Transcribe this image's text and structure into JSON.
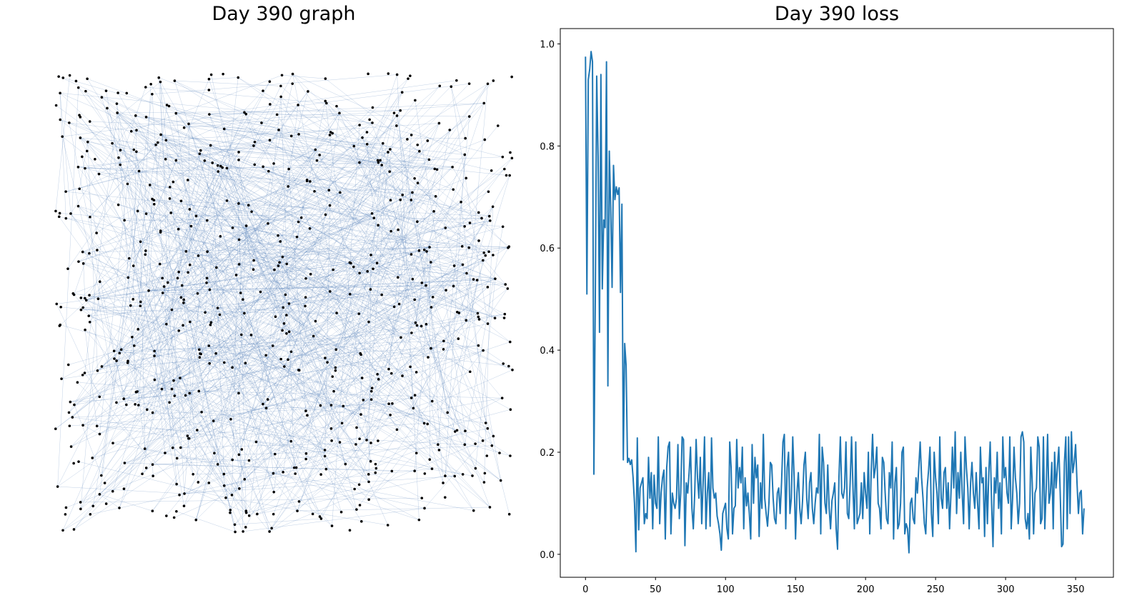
{
  "graph_panel": {
    "title": "Day 390 graph"
  },
  "loss_panel": {
    "title": "Day 390 loss"
  },
  "chart_data": [
    {
      "type": "scatter",
      "title": "Day 390 graph",
      "description_kind": "network graph",
      "node_count": 700,
      "edge_count": 900,
      "node_color": "#000000",
      "edge_color": "#4a78b5",
      "axes_visible": false
    },
    {
      "type": "line",
      "title": "Day 390 loss",
      "xlabel": "",
      "ylabel": "",
      "xlim": [
        -18,
        377
      ],
      "ylim": [
        -0.045,
        1.03
      ],
      "xticks": [
        0,
        50,
        100,
        150,
        200,
        250,
        300,
        350
      ],
      "yticks": [
        0.0,
        0.2,
        0.4,
        0.6,
        0.8,
        1.0
      ],
      "ytick_labels": [
        "0.0",
        "0.2",
        "0.4",
        "0.6",
        "0.8",
        "1.0"
      ],
      "line_color": "#1f77b4",
      "series": [
        {
          "values": [
            0.975,
            0.51,
            0.93,
            0.95,
            0.985,
            0.965,
            0.157,
            0.5,
            0.937,
            0.78,
            0.435,
            0.94,
            0.52,
            0.655,
            0.64,
            0.965,
            0.33,
            0.79,
            0.68,
            0.523,
            0.762,
            0.695,
            0.72,
            0.705,
            0.718,
            0.513,
            0.686,
            0.185,
            0.413,
            0.37,
            0.18,
            0.188,
            0.176,
            0.185,
            0.15,
            0.1,
            0.005,
            0.228,
            0.048,
            0.13,
            0.14,
            0.15,
            0.06,
            0.08,
            0.07,
            0.19,
            0.11,
            0.16,
            0.05,
            0.155,
            0.1,
            0.09,
            0.23,
            0.06,
            0.12,
            0.15,
            0.165,
            0.03,
            0.17,
            0.21,
            0.22,
            0.04,
            0.12,
            0.1,
            0.09,
            0.11,
            0.215,
            0.07,
            0.12,
            0.23,
            0.225,
            0.017,
            0.14,
            0.12,
            0.16,
            0.21,
            0.09,
            0.05,
            0.12,
            0.225,
            0.15,
            0.11,
            0.19,
            0.06,
            0.14,
            0.23,
            0.05,
            0.12,
            0.16,
            0.055,
            0.228,
            0.13,
            0.11,
            0.12,
            0.075,
            0.06,
            0.04,
            0.008,
            0.08,
            0.09,
            0.1,
            0.05,
            0.03,
            0.22,
            0.17,
            0.04,
            0.09,
            0.095,
            0.225,
            0.13,
            0.17,
            0.14,
            0.21,
            0.05,
            0.15,
            0.095,
            0.12,
            0.08,
            0.03,
            0.215,
            0.1,
            0.19,
            0.15,
            0.175,
            0.035,
            0.14,
            0.09,
            0.235,
            0.11,
            0.08,
            0.055,
            0.1,
            0.18,
            0.175,
            0.11,
            0.07,
            0.06,
            0.12,
            0.13,
            0.08,
            0.14,
            0.22,
            0.235,
            0.05,
            0.17,
            0.2,
            0.08,
            0.11,
            0.23,
            0.15,
            0.03,
            0.12,
            0.16,
            0.09,
            0.06,
            0.105,
            0.175,
            0.2,
            0.11,
            0.07,
            0.14,
            0.16,
            0.09,
            0.06,
            0.1,
            0.13,
            0.12,
            0.235,
            0.04,
            0.21,
            0.18,
            0.1,
            0.08,
            0.175,
            0.09,
            0.05,
            0.105,
            0.12,
            0.14,
            0.05,
            0.01,
            0.15,
            0.23,
            0.12,
            0.11,
            0.13,
            0.22,
            0.08,
            0.07,
            0.14,
            0.23,
            0.13,
            0.05,
            0.22,
            0.06,
            0.07,
            0.08,
            0.14,
            0.07,
            0.16,
            0.12,
            0.09,
            0.2,
            0.04,
            0.16,
            0.235,
            0.15,
            0.17,
            0.21,
            0.1,
            0.09,
            0.05,
            0.19,
            0.18,
            0.12,
            0.07,
            0.06,
            0.16,
            0.13,
            0.22,
            0.03,
            0.14,
            0.17,
            0.05,
            0.06,
            0.1,
            0.2,
            0.21,
            0.04,
            0.06,
            0.05,
            0.003,
            0.1,
            0.11,
            0.07,
            0.06,
            0.15,
            0.12,
            0.17,
            0.22,
            0.15,
            0.11,
            0.06,
            0.04,
            0.13,
            0.165,
            0.21,
            0.08,
            0.035,
            0.2,
            0.15,
            0.12,
            0.06,
            0.23,
            0.11,
            0.09,
            0.16,
            0.17,
            0.09,
            0.14,
            0.05,
            0.12,
            0.21,
            0.13,
            0.24,
            0.08,
            0.16,
            0.11,
            0.2,
            0.12,
            0.06,
            0.23,
            0.17,
            0.13,
            0.05,
            0.14,
            0.18,
            0.12,
            0.09,
            0.16,
            0.1,
            0.05,
            0.21,
            0.14,
            0.15,
            0.035,
            0.17,
            0.06,
            0.16,
            0.22,
            0.1,
            0.015,
            0.15,
            0.12,
            0.2,
            0.09,
            0.14,
            0.04,
            0.23,
            0.15,
            0.17,
            0.12,
            0.1,
            0.23,
            0.05,
            0.11,
            0.21,
            0.15,
            0.12,
            0.06,
            0.1,
            0.23,
            0.24,
            0.22,
            0.07,
            0.05,
            0.08,
            0.03,
            0.21,
            0.14,
            0.04,
            0.12,
            0.13,
            0.23,
            0.21,
            0.06,
            0.07,
            0.23,
            0.05,
            0.13,
            0.235,
            0.1,
            0.12,
            0.18,
            0.05,
            0.2,
            0.13,
            0.17,
            0.21,
            0.12,
            0.015,
            0.02,
            0.18,
            0.23,
            0.05,
            0.23,
            0.08,
            0.24,
            0.16,
            0.18,
            0.215,
            0.14,
            0.08,
            0.12,
            0.125,
            0.04,
            0.09
          ]
        }
      ]
    }
  ]
}
